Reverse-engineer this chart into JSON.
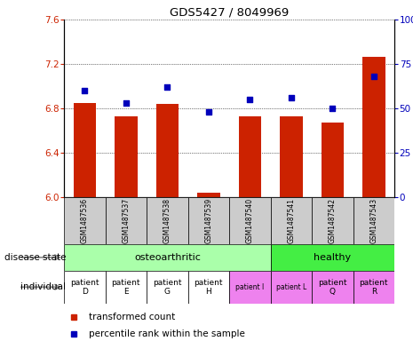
{
  "title": "GDS5427 / 8049969",
  "samples": [
    "GSM1487536",
    "GSM1487537",
    "GSM1487538",
    "GSM1487539",
    "GSM1487540",
    "GSM1487541",
    "GSM1487542",
    "GSM1487543"
  ],
  "transformed_counts": [
    6.85,
    6.73,
    6.84,
    6.04,
    6.73,
    6.73,
    6.67,
    7.26
  ],
  "percentile_ranks": [
    60,
    53,
    62,
    48,
    55,
    56,
    50,
    68
  ],
  "ylim_left": [
    6.0,
    7.6
  ],
  "ylim_right": [
    0,
    100
  ],
  "yticks_left": [
    6.0,
    6.4,
    6.8,
    7.2,
    7.6
  ],
  "yticks_right": [
    0,
    25,
    50,
    75,
    100
  ],
  "bar_color": "#CC2200",
  "dot_color": "#0000BB",
  "bar_width": 0.55,
  "sample_box_color": "#CCCCCC",
  "left_label_color": "#CC2200",
  "right_label_color": "#0000BB",
  "osteo_color": "#AAFFAA",
  "healthy_color": "#44EE44",
  "indiv_white_color": "#FFFFFF",
  "indiv_pink_color": "#EE82EE",
  "individual_labels_big": [
    "patient\nD",
    "patient\nE",
    "patient\nG",
    "patient\nH",
    "patient\nQ",
    "patient\nR"
  ],
  "individual_labels_small": [
    "patient I",
    "patient L"
  ],
  "arrow_color": "#888888"
}
